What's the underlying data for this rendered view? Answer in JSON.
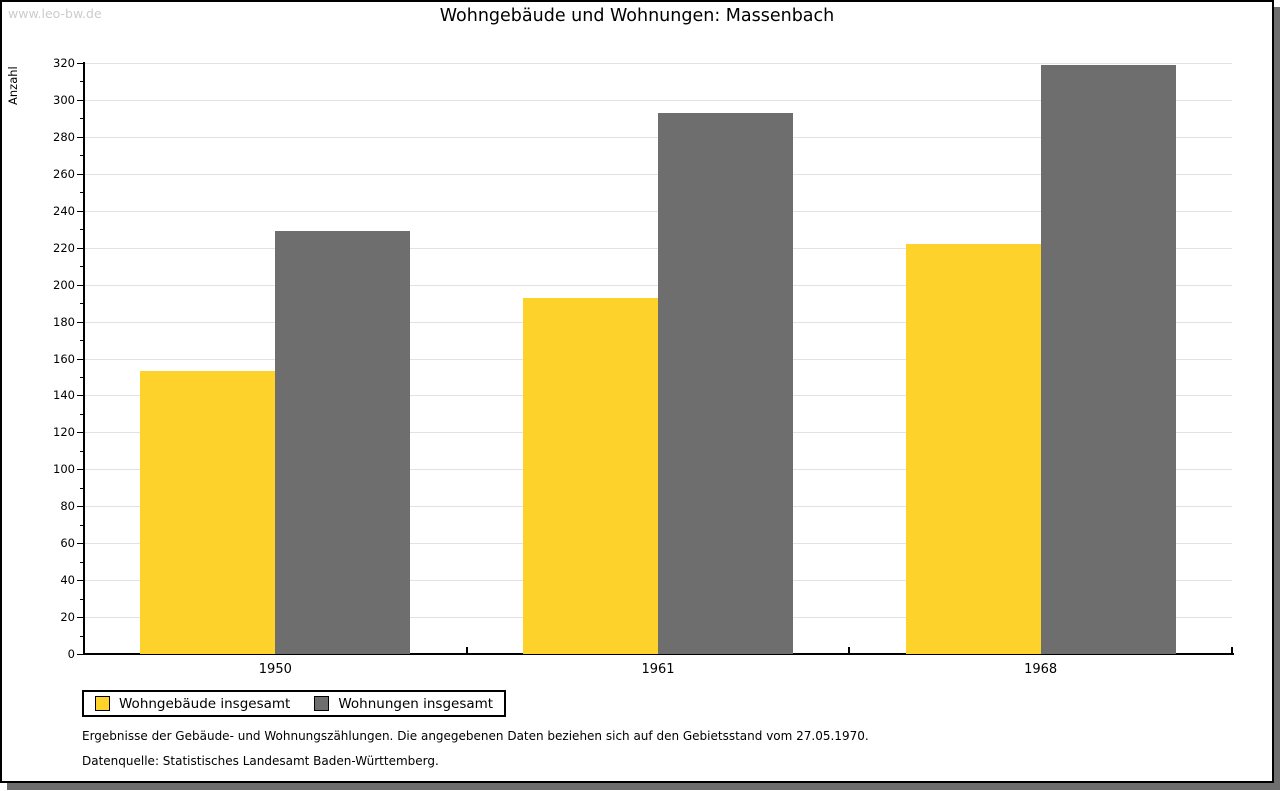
{
  "watermark": "www.leo-bw.de",
  "header": {
    "title": "Wohngebäude und Wohnungen: Massenbach"
  },
  "chart_data": {
    "type": "bar",
    "title": "Wohngebäude und Wohnungen: Massenbach",
    "ylabel": "Anzahl",
    "xlabel": "",
    "categories": [
      "1950",
      "1961",
      "1968"
    ],
    "series": [
      {
        "name": "Wohngebäude insgesamt",
        "color": "#FCD22B",
        "values": [
          153,
          193,
          222
        ]
      },
      {
        "name": "Wohnungen insgesamt",
        "color": "#6E6E6E",
        "values": [
          229,
          293,
          319
        ]
      }
    ],
    "ylim": [
      0,
      320
    ],
    "y_major_step": 20,
    "y_minor_step": 10,
    "grid": true,
    "gridline_color": "#E2E2E2",
    "legend_position": "bottom-left"
  },
  "footnotes": {
    "line1": "Ergebnisse der Gebäude- und Wohnungszählungen. Die angegebenen Daten beziehen sich auf den Gebietsstand vom 27.05.1970.",
    "line2": "Datenquelle: Statistisches Landesamt Baden-Württemberg."
  }
}
